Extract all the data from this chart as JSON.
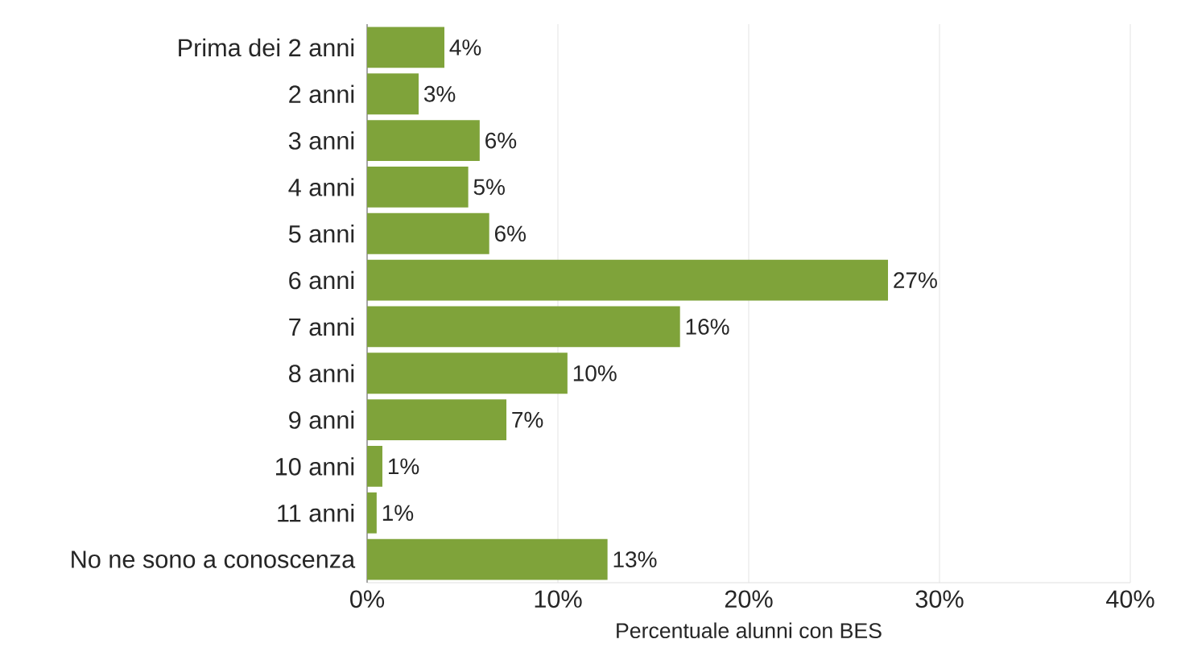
{
  "chart_data": {
    "type": "bar",
    "orientation": "horizontal",
    "categories": [
      "Prima dei 2 anni",
      "2 anni",
      "3 anni",
      "4 anni",
      "5 anni",
      "6 anni",
      "7 anni",
      "8 anni",
      "9 anni",
      "10 anni",
      "11 anni",
      "No ne sono a conoscenza"
    ],
    "values": [
      4.05,
      2.7,
      5.9,
      5.3,
      6.4,
      27.3,
      16.4,
      10.5,
      7.3,
      0.8,
      0.5,
      12.6
    ],
    "value_labels": [
      "4%",
      "3%",
      "6%",
      "5%",
      "6%",
      "27%",
      "16%",
      "10%",
      "7%",
      "1%",
      "1%",
      "13%"
    ],
    "color": "#7fa33a",
    "xlabel": "Percentuale alunni con BES",
    "xlim": [
      0,
      40
    ],
    "xticks": [
      {
        "value": 0,
        "label": "0%"
      },
      {
        "value": 10,
        "label": "10%"
      },
      {
        "value": 20,
        "label": "20%"
      },
      {
        "value": 30,
        "label": "30%"
      },
      {
        "value": 40,
        "label": "40%"
      }
    ],
    "grid": "x"
  }
}
